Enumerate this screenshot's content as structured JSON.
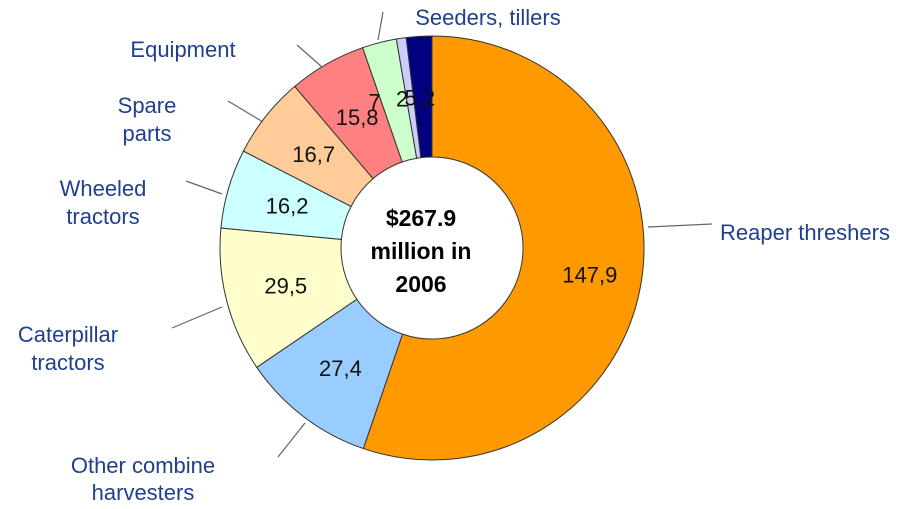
{
  "chart_data": {
    "type": "pie",
    "donut": true,
    "center_label": [
      "$267.9",
      "million in",
      "2006"
    ],
    "legend": "none",
    "slices": [
      {
        "label": "Reaper threshers",
        "value": 147.9,
        "value_label": "147,9",
        "color": "#ff9900"
      },
      {
        "label": "Other combine harvesters",
        "value": 27.4,
        "value_label": "27,4",
        "color": "#99ccff"
      },
      {
        "label": "Caterpillar tractors",
        "value": 29.5,
        "value_label": "29,5",
        "color": "#ffffcc"
      },
      {
        "label": "Wheeled tractors",
        "value": 16.2,
        "value_label": "16,2",
        "color": "#ccffff"
      },
      {
        "label": "Spare parts",
        "value": 16.7,
        "value_label": "16,7",
        "color": "#ffcc99"
      },
      {
        "label": "Equipment",
        "value": 15.8,
        "value_label": "15,8",
        "color": "#ff8080"
      },
      {
        "label": "",
        "value": 7,
        "value_label": "7",
        "color": "#ccffcc"
      },
      {
        "label": "",
        "value": 2,
        "value_label": "2",
        "color": "#ccccff"
      },
      {
        "label": "Seeders, tillers",
        "value": 5.2,
        "value_label": "5,2",
        "color": "#000080"
      }
    ]
  }
}
